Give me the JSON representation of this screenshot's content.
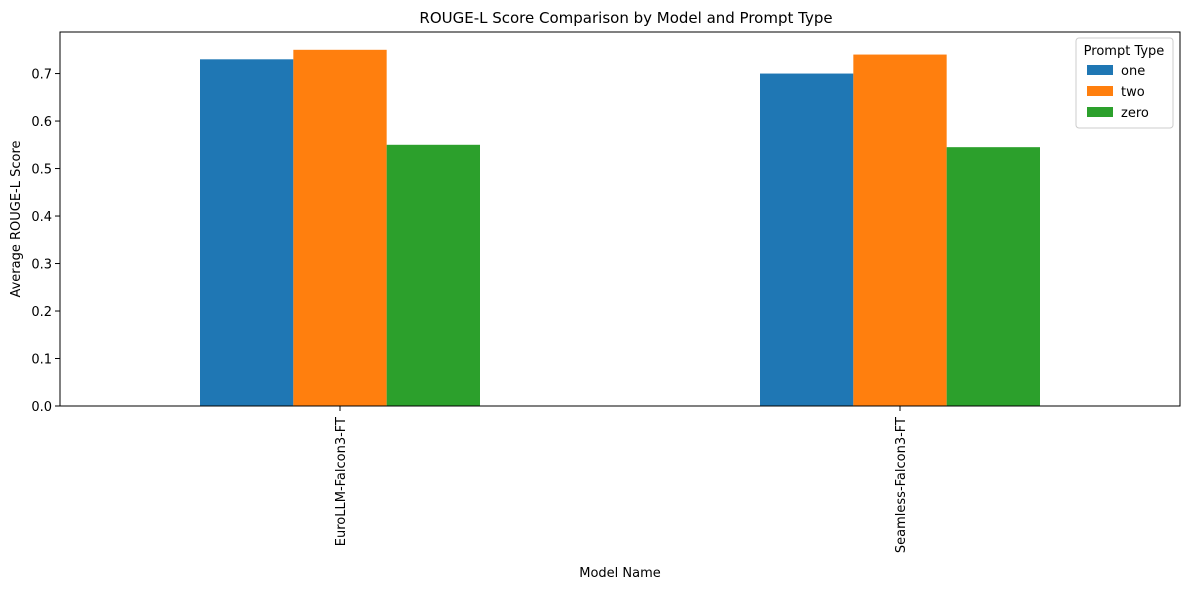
{
  "chart_data": {
    "type": "bar",
    "title": "ROUGE-L Score Comparison by Model and Prompt Type",
    "xlabel": "Model Name",
    "ylabel": "Average ROUGE-L Score",
    "categories": [
      "EuroLLM-Falcon3-FT",
      "Seamless-Falcon3-FT"
    ],
    "series": [
      {
        "name": "one",
        "color": "#1f77b4",
        "values": [
          0.73,
          0.7
        ]
      },
      {
        "name": "two",
        "color": "#ff7f0e",
        "values": [
          0.75,
          0.74
        ]
      },
      {
        "name": "zero",
        "color": "#2ca02c",
        "values": [
          0.55,
          0.545
        ]
      }
    ],
    "ylim": [
      0,
      0.7875
    ],
    "yticks": [
      "0.0",
      "0.1",
      "0.2",
      "0.3",
      "0.4",
      "0.5",
      "0.6",
      "0.7"
    ],
    "legend_title": "Prompt Type",
    "legend_position": "top-right",
    "grid": false
  }
}
